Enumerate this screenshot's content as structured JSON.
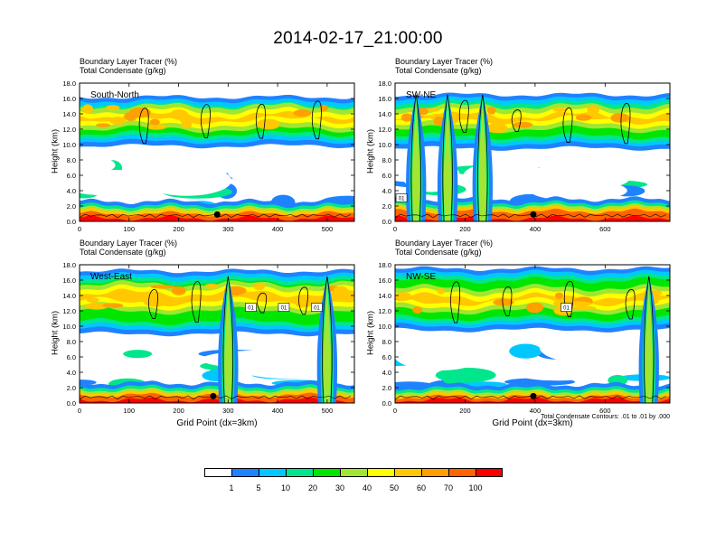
{
  "title": "2014-02-17_21:00:00",
  "colors": {
    "frame": "#000000",
    "contour": "#000000",
    "legend": [
      "#ffffff",
      "#1f82ff",
      "#00c8ff",
      "#00e68c",
      "#00e600",
      "#a0e632",
      "#ffff00",
      "#ffc800",
      "#ffa000",
      "#ff6400",
      "#ff0000"
    ]
  },
  "legend": {
    "labels": [
      "1",
      "5",
      "10",
      "20",
      "30",
      "40",
      "50",
      "60",
      "70",
      "100"
    ]
  },
  "panels": [
    {
      "id": "south-north",
      "title_line1": "Boundary Layer Tracer    (%)",
      "title_line2": "Total Condensate   (g/kg)",
      "label": "South-North",
      "ylabel": "Height (km)",
      "yticks": [
        "0.0",
        "2.0",
        "4.0",
        "6.0",
        "8.0",
        "10.0",
        "12.0",
        "14.0",
        "16.0",
        "18.0"
      ],
      "xticks": [
        "0",
        "100",
        "200",
        "300",
        "400",
        "500"
      ],
      "xmax": 555,
      "marker_x": 278,
      "contour_tags": []
    },
    {
      "id": "sw-ne",
      "title_line1": "Boundary Layer Tracer    (%)",
      "title_line2": "Total Condensate   (g/kg)",
      "label": "SW-NE",
      "ylabel": "Height (km)",
      "yticks": [
        "0.0",
        "2.0",
        "4.0",
        "6.0",
        "8.0",
        "10.0",
        "12.0",
        "14.0",
        "16.0",
        "18.0"
      ],
      "xticks": [
        "0",
        "200",
        "400",
        "600"
      ],
      "xmax": 785,
      "marker_x": 395,
      "contour_tags": [
        "01"
      ]
    },
    {
      "id": "west-east",
      "title_line1": "Boundary Layer Tracer    (%)",
      "title_line2": "Total Condensate   (g/kg)",
      "label": "West-East",
      "ylabel": "Height (km)",
      "yticks": [
        "0.0",
        "2.0",
        "4.0",
        "6.0",
        "8.0",
        "10.0",
        "12.0",
        "14.0",
        "16.0",
        "18.0"
      ],
      "xticks": [
        "0",
        "100",
        "200",
        "300",
        "400",
        "500"
      ],
      "xmax": 555,
      "marker_x": 270,
      "contour_tags": [
        "01",
        "01",
        "01"
      ],
      "xlabel": "Grid Point (dx=3km)"
    },
    {
      "id": "nw-se",
      "title_line1": "Boundary Layer Tracer    (%)",
      "title_line2": "Total Condensate   (g/kg)",
      "label": "NW-SE",
      "ylabel": "Height (km)",
      "yticks": [
        "0.0",
        "2.0",
        "4.0",
        "6.0",
        "8.0",
        "10.0",
        "12.0",
        "14.0",
        "16.0",
        "18.0"
      ],
      "xticks": [
        "0",
        "200",
        "400",
        "600"
      ],
      "xmax": 785,
      "marker_x": 395,
      "contour_tags": [
        "01"
      ],
      "xlabel": "Grid Point (dx=3km)",
      "footnote": "Total Condensate Contours: .01 to .01 by .000"
    }
  ],
  "chart_data": [
    {
      "type": "heatmap",
      "title": "Boundary Layer Tracer (%) / Total Condensate (g/kg)",
      "cross_section": "South-North",
      "xlabel": "",
      "ylabel": "Height (km)",
      "xlim": [
        0,
        555
      ],
      "ylim": [
        0,
        18
      ],
      "color_levels": [
        1,
        5,
        10,
        20,
        30,
        40,
        50,
        60,
        70,
        100
      ],
      "features": {
        "upper_layer_km": [
          9.8,
          16.2
        ],
        "upper_core_km": [
          12,
          15
        ],
        "boundary_layer_top_km": 1.2,
        "scattered_mid_layer_km": [
          2,
          6
        ]
      }
    },
    {
      "type": "heatmap",
      "title": "Boundary Layer Tracer (%) / Total Condensate (g/kg)",
      "cross_section": "SW-NE",
      "xlabel": "",
      "ylabel": "Height (km)",
      "xlim": [
        0,
        785
      ],
      "ylim": [
        0,
        18
      ],
      "color_levels": [
        1,
        5,
        10,
        20,
        30,
        40,
        50,
        60,
        70,
        100
      ],
      "features": {
        "upper_layer_km": [
          9.5,
          16.5
        ],
        "upper_core_km": [
          12,
          15
        ],
        "boundary_layer_top_km": 1.5,
        "vertical_plumes_x": [
          60,
          150,
          250
        ]
      }
    },
    {
      "type": "heatmap",
      "title": "Boundary Layer Tracer (%) / Total Condensate (g/kg)",
      "cross_section": "West-East",
      "xlabel": "Grid Point (dx=3km)",
      "ylabel": "Height (km)",
      "xlim": [
        0,
        555
      ],
      "ylim": [
        0,
        18
      ],
      "color_levels": [
        1,
        5,
        10,
        20,
        30,
        40,
        50,
        60,
        70,
        100
      ],
      "features": {
        "upper_layer_km": [
          9,
          17.2
        ],
        "upper_core_km": [
          12,
          15.5
        ],
        "boundary_layer_top_km": 1.2,
        "deep_convection_x": [
          300,
          500
        ]
      }
    },
    {
      "type": "heatmap",
      "title": "Boundary Layer Tracer (%) / Total Condensate (g/kg)",
      "cross_section": "NW-SE",
      "xlabel": "Grid Point (dx=3km)",
      "ylabel": "Height (km)",
      "xlim": [
        0,
        785
      ],
      "ylim": [
        0,
        18
      ],
      "color_levels": [
        1,
        5,
        10,
        20,
        30,
        40,
        50,
        60,
        70,
        100
      ],
      "features": {
        "upper_layer_km": [
          9.5,
          17.5
        ],
        "upper_core_km": [
          12,
          15
        ],
        "boundary_layer_top_km": 1.0,
        "deep_convection_x": [
          725
        ]
      }
    }
  ]
}
